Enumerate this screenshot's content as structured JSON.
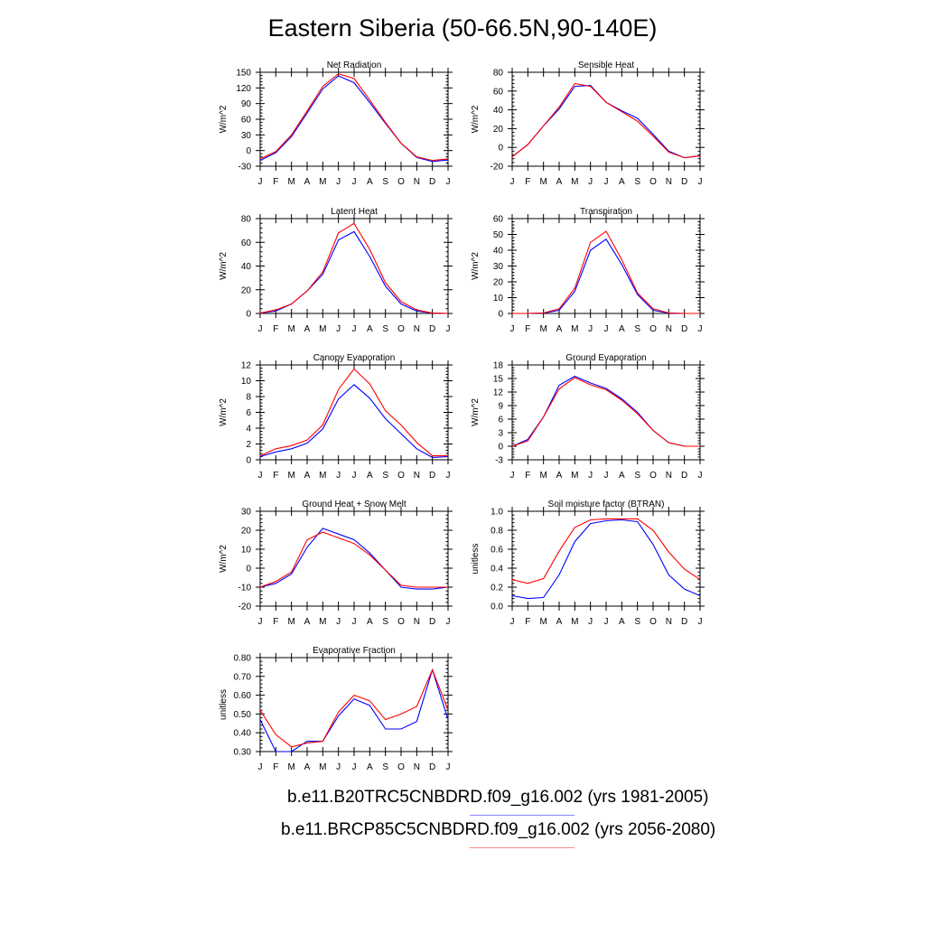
{
  "title": "Eastern Siberia (50-66.5N,90-140E)",
  "colors": {
    "series1": "#0000ff",
    "series2": "#ff0000"
  },
  "legend": [
    {
      "label": "b.e11.B20TRC5CNBDRD.f09_g16.002 (yrs 1981-2005)",
      "color": "#0000ff"
    },
    {
      "label": "b.e11.BRCP85C5CNBDRD.f09_g16.002 (yrs 2056-2080)",
      "color": "#ff0000"
    }
  ],
  "chart_data": [
    {
      "type": "line",
      "title": "Net Radiation",
      "ylabel": "W/m^2",
      "x": [
        "J",
        "F",
        "M",
        "A",
        "M",
        "J",
        "J",
        "A",
        "S",
        "O",
        "N",
        "D",
        "J"
      ],
      "ylim": [
        -30,
        150
      ],
      "yticks": [
        "-30",
        "0",
        "30",
        "60",
        "90",
        "120",
        "150"
      ],
      "series": [
        {
          "values": [
            -19,
            -4,
            27,
            72,
            118,
            143,
            130,
            92,
            52,
            14,
            -13,
            -21,
            -18
          ]
        },
        {
          "values": [
            -16,
            -2,
            30,
            76,
            123,
            147,
            138,
            97,
            54,
            14,
            -12,
            -19,
            -16
          ]
        }
      ]
    },
    {
      "type": "line",
      "title": "Sensible Heat",
      "ylabel": "W/m^2",
      "x": [
        "J",
        "F",
        "M",
        "A",
        "M",
        "J",
        "J",
        "A",
        "S",
        "O",
        "N",
        "D",
        "J"
      ],
      "ylim": [
        -20,
        80
      ],
      "yticks": [
        "-20",
        "0",
        "20",
        "40",
        "60",
        "80"
      ],
      "series": [
        {
          "values": [
            -10,
            3,
            23,
            41,
            65,
            66,
            48,
            39,
            31,
            14,
            -4,
            -11,
            -9
          ]
        },
        {
          "values": [
            -10,
            3,
            23,
            43,
            68,
            65,
            48,
            38,
            28,
            12,
            -5,
            -11,
            -9
          ]
        }
      ]
    },
    {
      "type": "line",
      "title": "Latent Heat",
      "ylabel": "W/m^2",
      "x": [
        "J",
        "F",
        "M",
        "A",
        "M",
        "J",
        "J",
        "A",
        "S",
        "O",
        "N",
        "D",
        "J"
      ],
      "ylim": [
        0,
        80
      ],
      "yticks": [
        "0",
        "20",
        "40",
        "60",
        "80"
      ],
      "series": [
        {
          "values": [
            0.3,
            2,
            8,
            19,
            33,
            62,
            69,
            48,
            23,
            8,
            2,
            0.3,
            0
          ]
        },
        {
          "values": [
            0.3,
            3,
            8,
            19,
            35,
            68,
            76,
            54,
            26,
            10,
            3,
            0.3,
            0
          ]
        }
      ]
    },
    {
      "type": "line",
      "title": "Transpiration",
      "ylabel": "W/m^2",
      "x": [
        "J",
        "F",
        "M",
        "A",
        "M",
        "J",
        "J",
        "A",
        "S",
        "O",
        "N",
        "D",
        "J"
      ],
      "ylim": [
        0,
        60
      ],
      "yticks": [
        "0",
        "10",
        "20",
        "30",
        "40",
        "50",
        "60"
      ],
      "series": [
        {
          "values": [
            0,
            0,
            0.2,
            2,
            14,
            40,
            47,
            31,
            12,
            2,
            0.2,
            0,
            0
          ]
        },
        {
          "values": [
            0,
            0,
            0.3,
            3,
            16,
            45,
            52,
            34,
            13,
            3,
            0.3,
            0,
            0
          ]
        }
      ]
    },
    {
      "type": "line",
      "title": "Canopy Evaporation",
      "ylabel": "W/m^2",
      "x": [
        "J",
        "F",
        "M",
        "A",
        "M",
        "J",
        "J",
        "A",
        "S",
        "O",
        "N",
        "D",
        "J"
      ],
      "ylim": [
        0,
        12
      ],
      "yticks": [
        "0",
        "2",
        "4",
        "6",
        "8",
        "10",
        "12"
      ],
      "series": [
        {
          "values": [
            0.4,
            1.0,
            1.4,
            2.1,
            3.9,
            7.7,
            9.5,
            7.8,
            5.2,
            3.3,
            1.4,
            0.3,
            0.4
          ]
        },
        {
          "values": [
            0.5,
            1.4,
            1.8,
            2.5,
            4.4,
            8.9,
            11.5,
            9.6,
            6.2,
            4.4,
            2.2,
            0.5,
            0.5
          ]
        }
      ]
    },
    {
      "type": "line",
      "title": "Ground Evaporation",
      "ylabel": "W/m^2",
      "x": [
        "J",
        "F",
        "M",
        "A",
        "M",
        "J",
        "J",
        "A",
        "S",
        "O",
        "N",
        "D",
        "J"
      ],
      "ylim": [
        -3,
        18
      ],
      "yticks": [
        "-3",
        "0",
        "3",
        "6",
        "9",
        "12",
        "15",
        "18"
      ],
      "series": [
        {
          "values": [
            0,
            1.5,
            6.5,
            13.5,
            15.5,
            14.0,
            12.8,
            10.5,
            7.5,
            3.5,
            0.8,
            0,
            0
          ]
        },
        {
          "values": [
            0,
            1.2,
            6.5,
            12.7,
            15.2,
            13.6,
            12.5,
            10.2,
            7.2,
            3.5,
            0.8,
            0,
            0
          ]
        }
      ]
    },
    {
      "type": "line",
      "title": "Ground Heat + Snow Melt",
      "ylabel": "W/m^2",
      "x": [
        "J",
        "F",
        "M",
        "A",
        "M",
        "J",
        "J",
        "A",
        "S",
        "O",
        "N",
        "D",
        "J"
      ],
      "ylim": [
        -20,
        30
      ],
      "yticks": [
        "-20",
        "-10",
        "0",
        "10",
        "20",
        "30"
      ],
      "series": [
        {
          "values": [
            -10,
            -8,
            -3,
            11,
            21,
            18,
            15,
            8,
            -1,
            -10,
            -11,
            -11,
            -10
          ]
        },
        {
          "values": [
            -10,
            -7,
            -2,
            15,
            19,
            16,
            13,
            7,
            -1,
            -9,
            -10,
            -10,
            -10
          ]
        }
      ]
    },
    {
      "type": "line",
      "title": "Soil moisture factor (BTRAN)",
      "ylabel": "unitless",
      "x": [
        "J",
        "F",
        "M",
        "A",
        "M",
        "J",
        "J",
        "A",
        "S",
        "O",
        "N",
        "D",
        "J"
      ],
      "ylim": [
        0,
        1
      ],
      "yticks": [
        "0.0",
        "0.2",
        "0.4",
        "0.6",
        "0.8",
        "1.0"
      ],
      "series": [
        {
          "values": [
            0.11,
            0.08,
            0.09,
            0.33,
            0.68,
            0.87,
            0.9,
            0.91,
            0.89,
            0.65,
            0.33,
            0.18,
            0.11
          ]
        },
        {
          "values": [
            0.28,
            0.24,
            0.29,
            0.58,
            0.83,
            0.91,
            0.92,
            0.92,
            0.92,
            0.8,
            0.57,
            0.39,
            0.28
          ]
        }
      ]
    },
    {
      "type": "line",
      "title": "Evaporative Fraction",
      "ylabel": "unitless",
      "x": [
        "J",
        "F",
        "M",
        "A",
        "M",
        "J",
        "J",
        "A",
        "S",
        "O",
        "N",
        "D",
        "J"
      ],
      "ylim": [
        0.3,
        0.8
      ],
      "yticks": [
        "0.30",
        "0.40",
        "0.50",
        "0.60",
        "0.70",
        "0.80"
      ],
      "series": [
        {
          "values": [
            0.47,
            0.3,
            0.3,
            0.355,
            0.355,
            0.49,
            0.58,
            0.545,
            0.42,
            0.42,
            0.46,
            0.735,
            0.47
          ]
        },
        {
          "values": [
            0.52,
            0.39,
            0.325,
            0.345,
            0.355,
            0.51,
            0.6,
            0.57,
            0.47,
            0.5,
            0.54,
            0.735,
            0.52
          ]
        }
      ]
    }
  ]
}
